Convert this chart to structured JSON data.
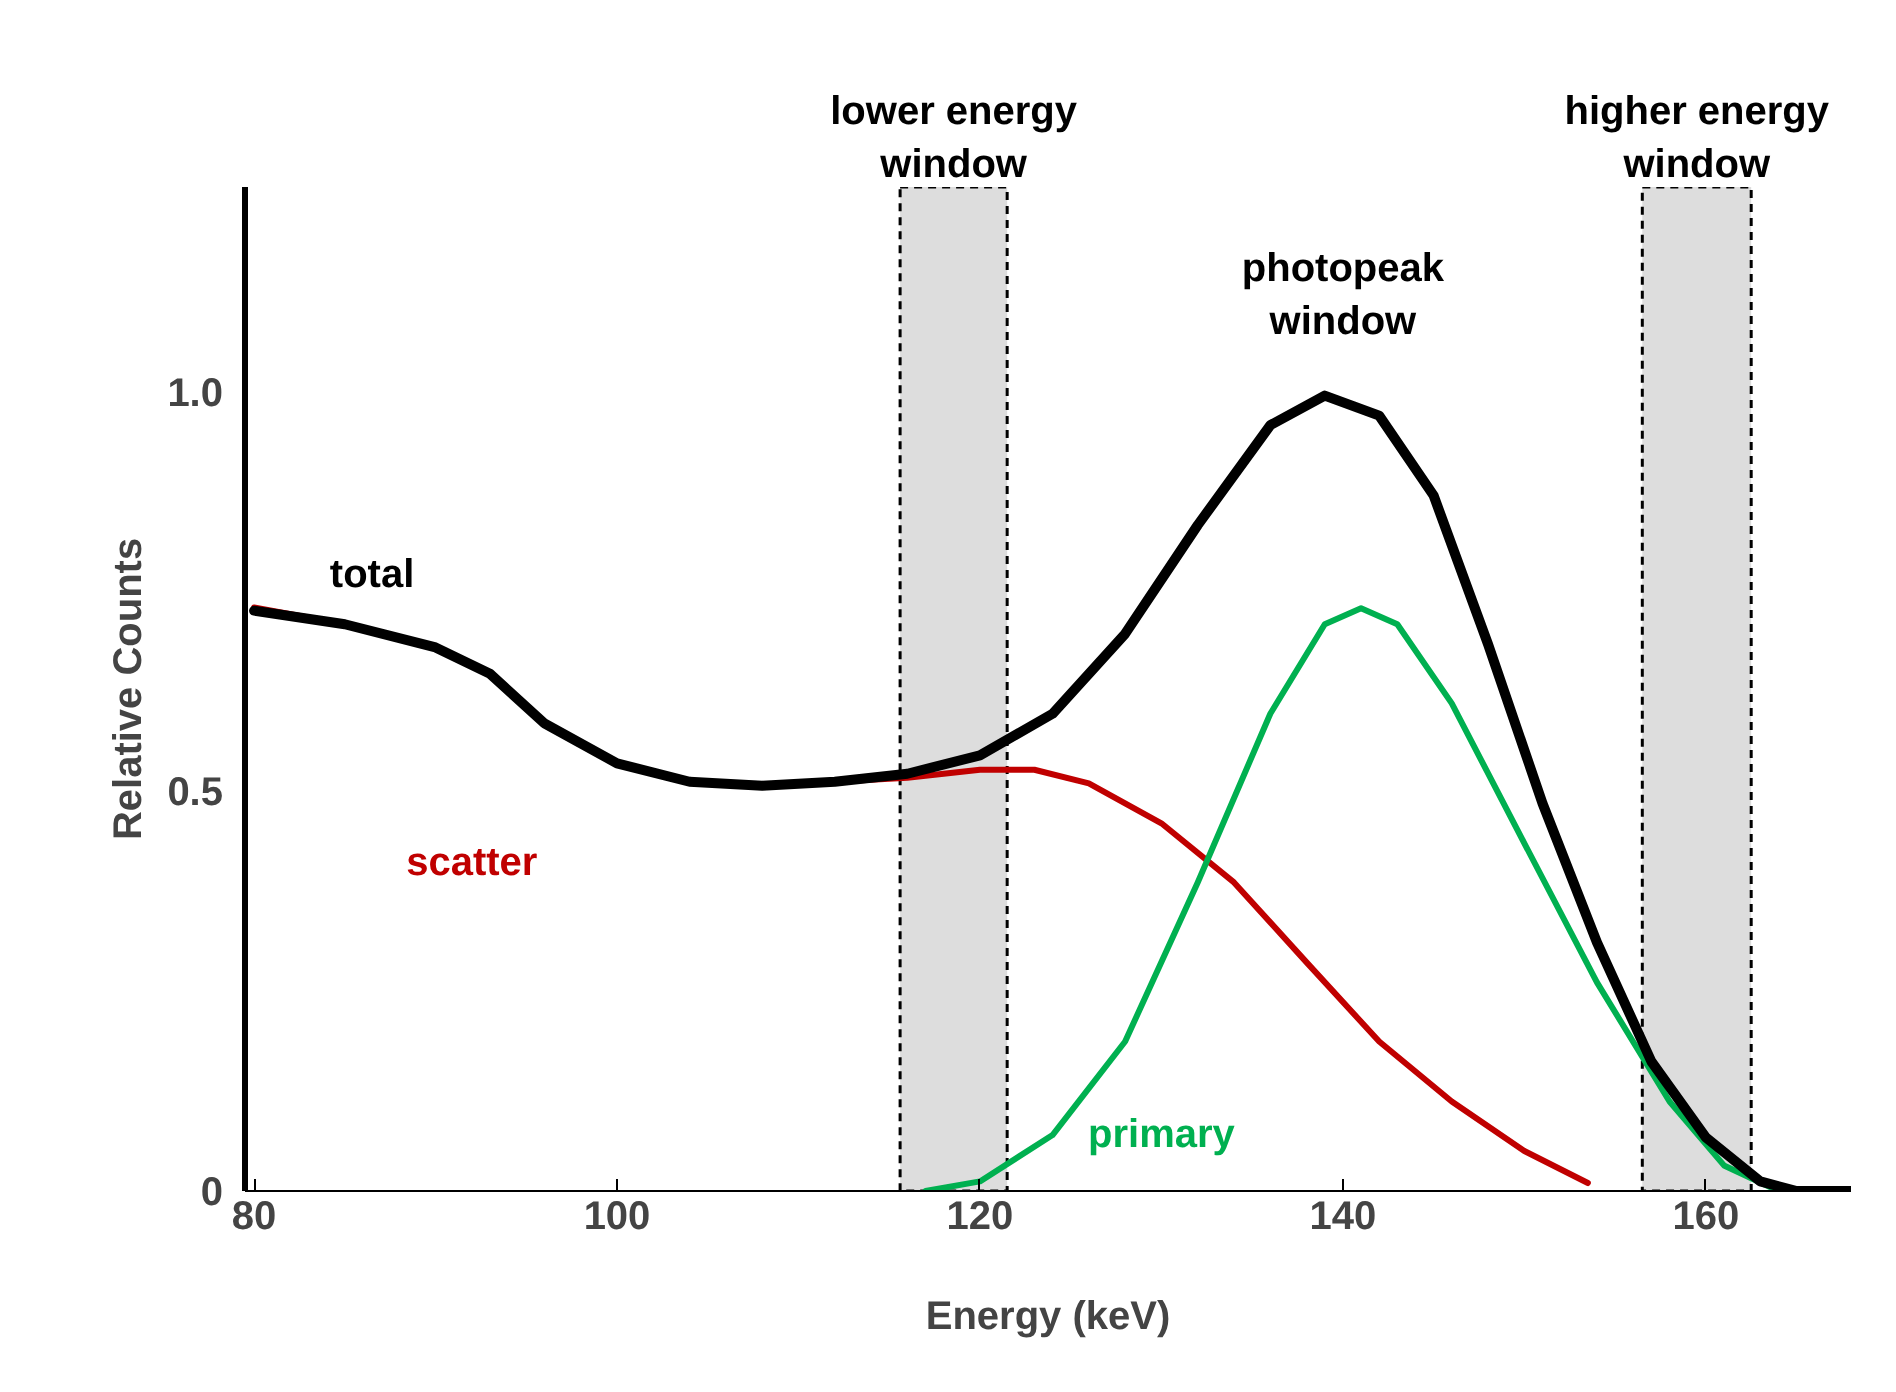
{
  "chart_data": {
    "type": "line",
    "xlabel": "Energy (keV)",
    "ylabel": "Relative Counts",
    "xlim": [
      79.5,
      168
    ],
    "ylim": [
      0,
      1.256
    ],
    "xticks": [
      80,
      100,
      120,
      140,
      160
    ],
    "yticks": [
      0,
      0.5,
      {
        "value": 1.0,
        "label": "1.0"
      }
    ],
    "grid": false,
    "legend": false,
    "series": [
      {
        "name": "scatter",
        "color": "#c00000",
        "x": [
          80,
          85,
          90,
          93,
          96,
          100,
          104,
          108,
          112,
          116,
          120,
          123,
          126,
          130,
          134,
          138,
          142,
          146,
          150,
          153.5
        ],
        "values": [
          0.73,
          0.709,
          0.68,
          0.647,
          0.585,
          0.535,
          0.512,
          0.507,
          0.512,
          0.517,
          0.527,
          0.527,
          0.51,
          0.46,
          0.386,
          0.286,
          0.187,
          0.112,
          0.05,
          0.01
        ]
      },
      {
        "name": "primary",
        "color": "#00b050",
        "x": [
          117,
          120,
          124,
          128,
          132,
          136,
          139,
          141,
          143,
          146,
          150,
          154,
          158,
          161,
          164,
          168
        ],
        "values": [
          0,
          0.012,
          0.07,
          0.187,
          0.386,
          0.597,
          0.709,
          0.729,
          0.709,
          0.61,
          0.435,
          0.261,
          0.112,
          0.032,
          0,
          0
        ]
      },
      {
        "name": "total",
        "color": "#000000",
        "x": [
          80,
          85,
          90,
          93,
          96,
          100,
          104,
          108,
          112,
          116,
          120,
          124,
          128,
          132,
          136,
          139,
          142,
          145,
          148,
          151,
          154,
          157,
          160,
          163,
          165,
          168
        ],
        "values": [
          0.726,
          0.709,
          0.68,
          0.647,
          0.585,
          0.535,
          0.512,
          0.507,
          0.512,
          0.522,
          0.545,
          0.597,
          0.697,
          0.833,
          0.958,
          0.995,
          0.97,
          0.87,
          0.684,
          0.485,
          0.311,
          0.162,
          0.067,
          0.012,
          0,
          0
        ]
      }
    ],
    "bands": [
      {
        "axis": "x",
        "from": 115.6,
        "to": 121.5,
        "label": "lower energy window",
        "color": "#d9d9d9"
      },
      {
        "axis": "x",
        "from": 156.5,
        "to": 162.5,
        "label": "higher energy window",
        "color": "#d9d9d9"
      }
    ],
    "annotations": [
      "photopeak window"
    ]
  }
}
